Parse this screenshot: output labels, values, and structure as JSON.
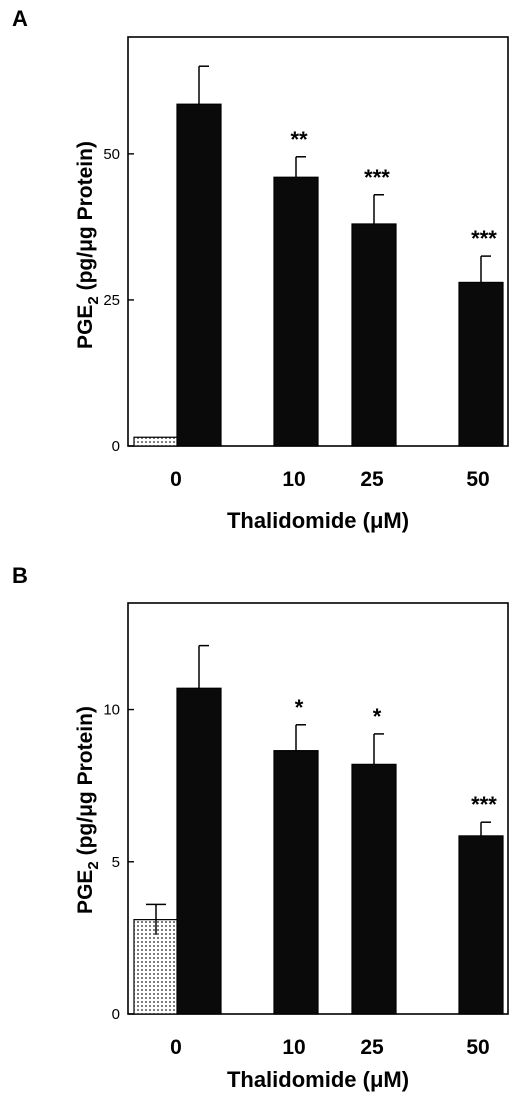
{
  "chart_data": [
    {
      "panel": "A",
      "type": "bar",
      "categories": [
        "0",
        "10",
        "25",
        "50"
      ],
      "series": [
        {
          "style": "dotted",
          "values": [
            1.5,
            null,
            null,
            null
          ],
          "errors": [
            0,
            null,
            null,
            null
          ]
        },
        {
          "style": "solid",
          "values": [
            58.5,
            46,
            38,
            28
          ],
          "errors": [
            6.5,
            3.5,
            5,
            4.5
          ]
        }
      ],
      "significance": [
        "",
        "**",
        "***",
        "***"
      ],
      "xlabel": "Thalidomide (μM)",
      "ylabel": "PGE2 (pg/μg Protein)",
      "ylabel_parts": {
        "pre": "PGE",
        "sub": "2",
        "post": " (pg/μg Protein)"
      },
      "yticks": [
        0,
        25,
        50
      ],
      "ylim": [
        0,
        70
      ]
    },
    {
      "panel": "B",
      "type": "bar",
      "categories": [
        "0",
        "10",
        "25",
        "50"
      ],
      "series": [
        {
          "style": "dotted",
          "values": [
            3.1,
            null,
            null,
            null
          ],
          "errors": [
            0.5,
            null,
            null,
            null
          ]
        },
        {
          "style": "solid",
          "values": [
            10.7,
            8.65,
            8.2,
            5.85
          ],
          "errors": [
            1.4,
            0.85,
            1.0,
            0.45
          ]
        }
      ],
      "significance": [
        "",
        "*",
        "*",
        "***"
      ],
      "xlabel": "Thalidomide (μM)",
      "ylabel": "PGE2 (pg/μg Protein)",
      "ylabel_parts": {
        "pre": "PGE",
        "sub": "2",
        "post": " (pg/μg Protein)"
      },
      "yticks": [
        0,
        5,
        10
      ],
      "ylim": [
        0,
        13.5
      ]
    }
  ]
}
